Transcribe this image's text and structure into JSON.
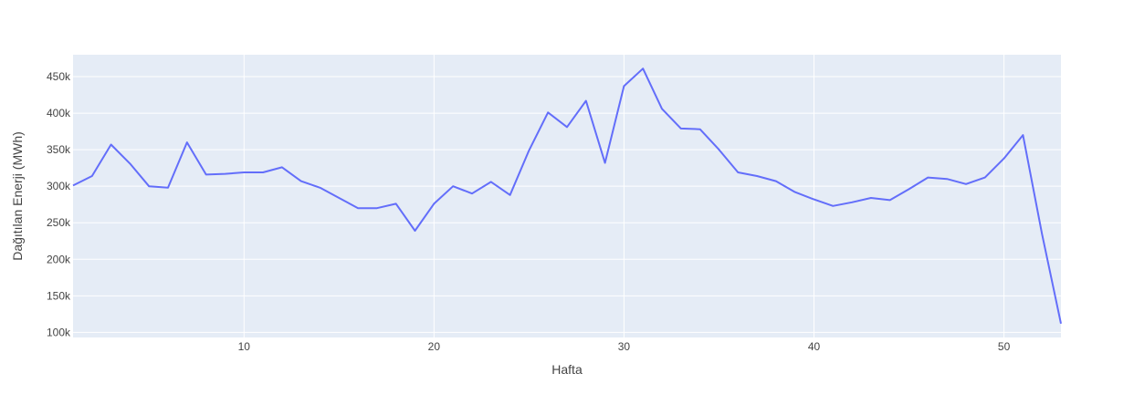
{
  "chart_data": {
    "type": "line",
    "title": "",
    "xlabel": "Hafta",
    "ylabel": "Dağıtılan Enerji (MWh)",
    "xlim": [
      1,
      53
    ],
    "ylim": [
      93000,
      480000
    ],
    "x_ticks": [
      10,
      20,
      30,
      40,
      50
    ],
    "y_ticks": [
      100000,
      150000,
      200000,
      250000,
      300000,
      350000,
      400000,
      450000
    ],
    "y_tick_labels": [
      "100k",
      "150k",
      "200k",
      "250k",
      "300k",
      "350k",
      "400k",
      "450k"
    ],
    "grid": true,
    "colors": {
      "plot_background": "#e5ecf6",
      "grid": "#ffffff",
      "line": "#636efa",
      "text": "#444444"
    },
    "series": [
      {
        "x": [
          1,
          2,
          3,
          4,
          5,
          6,
          7,
          8,
          9,
          10,
          11,
          12,
          13,
          14,
          15,
          16,
          17,
          18,
          19,
          20,
          21,
          22,
          23,
          24,
          25,
          26,
          27,
          28,
          29,
          30,
          31,
          32,
          33,
          34,
          35,
          36,
          37,
          38,
          39,
          40,
          41,
          42,
          43,
          44,
          45,
          46,
          47,
          48,
          49,
          50,
          51,
          52,
          53
        ],
        "values": [
          301000,
          314000,
          357000,
          331000,
          300000,
          298000,
          360000,
          316000,
          317000,
          319000,
          319000,
          326000,
          307000,
          298000,
          284000,
          270000,
          270000,
          276000,
          239000,
          276000,
          300000,
          290000,
          306000,
          288000,
          349000,
          401000,
          381000,
          417000,
          332000,
          437000,
          461000,
          406000,
          379000,
          378000,
          350000,
          319000,
          314000,
          307000,
          292000,
          282000,
          273000,
          278000,
          284000,
          281000,
          296000,
          312000,
          310000,
          303000,
          312000,
          338000,
          370000,
          235000,
          112000
        ]
      }
    ]
  }
}
